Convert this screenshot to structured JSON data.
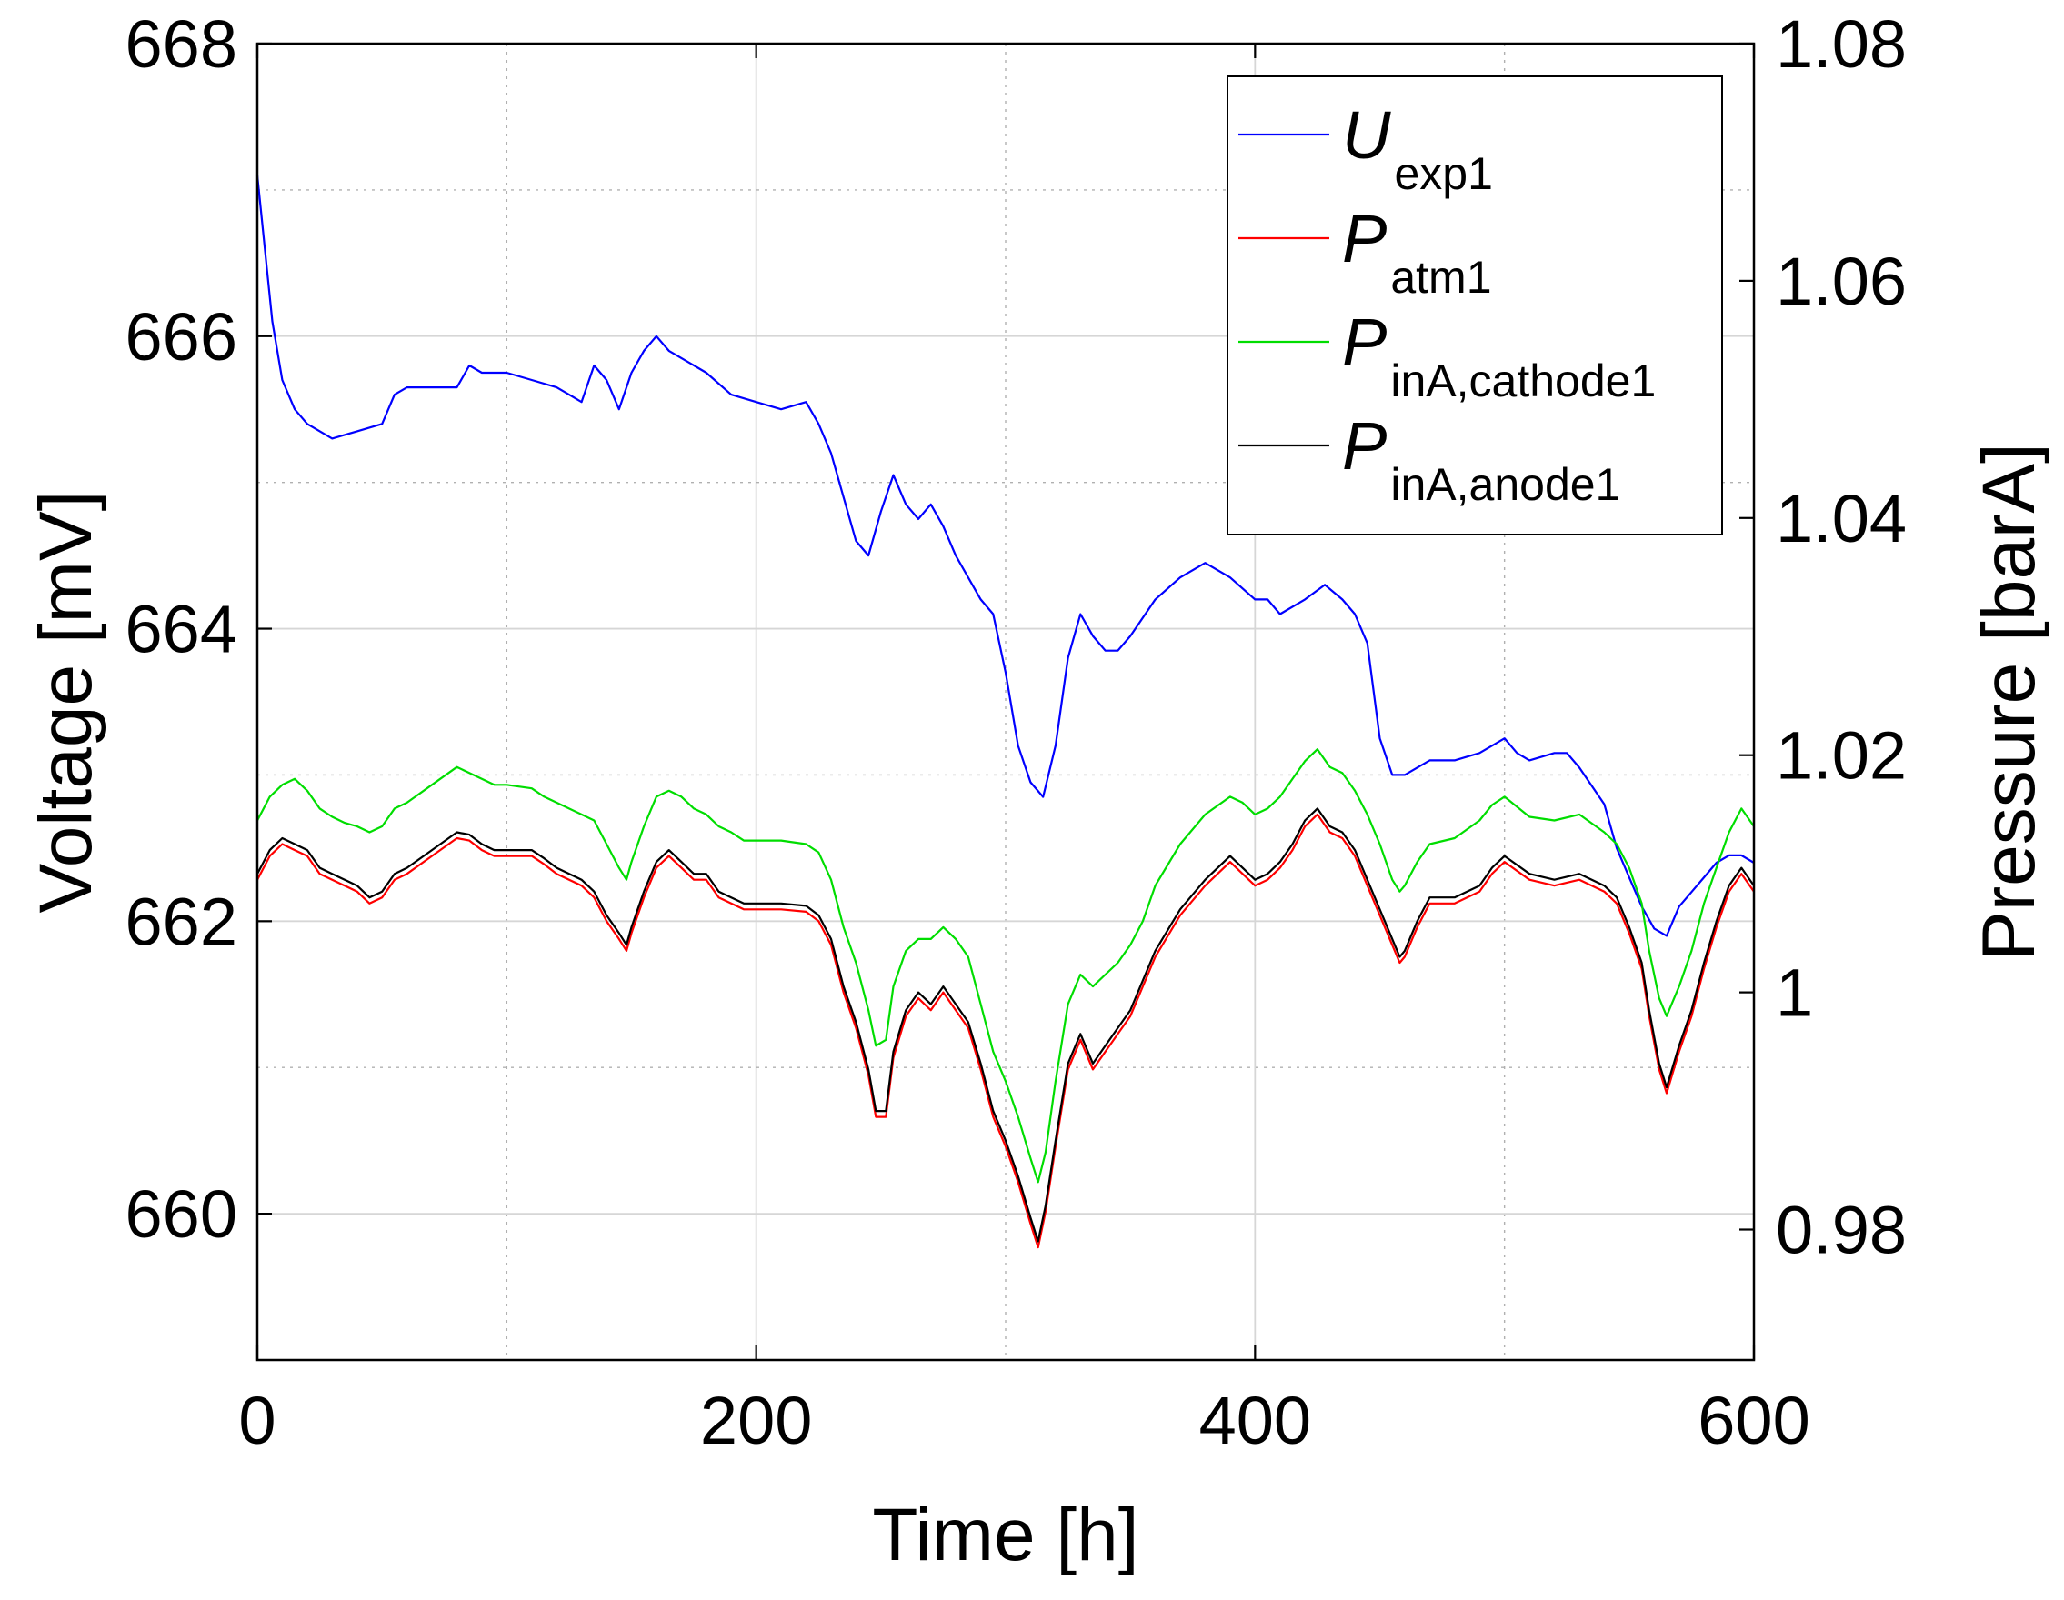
{
  "chart_data": {
    "type": "line",
    "xlabel": "Time [h]",
    "ylabel_left": "Voltage [mV]",
    "ylabel_right": "Pressure [barA]",
    "xlim": [
      0,
      600
    ],
    "ylim_left": [
      659,
      668
    ],
    "ylim_right": [
      0.969,
      1.08
    ],
    "x_ticks": [
      {
        "value": 0,
        "label": "0"
      },
      {
        "value": 200,
        "label": "200"
      },
      {
        "value": 400,
        "label": "400"
      },
      {
        "value": 600,
        "label": "600"
      }
    ],
    "y_left_ticks": [
      {
        "value": 660,
        "label": "660"
      },
      {
        "value": 662,
        "label": "662"
      },
      {
        "value": 664,
        "label": "664"
      },
      {
        "value": 666,
        "label": "666"
      },
      {
        "value": 668,
        "label": "668"
      }
    ],
    "y_right_ticks": [
      {
        "value": 0.98,
        "label": "0.98"
      },
      {
        "value": 1.0,
        "label": "1"
      },
      {
        "value": 1.02,
        "label": "1.02"
      },
      {
        "value": 1.04,
        "label": "1.04"
      },
      {
        "value": 1.06,
        "label": "1.06"
      },
      {
        "value": 1.08,
        "label": "1.08"
      }
    ],
    "grid": true,
    "legend_position": "top-right",
    "series": [
      {
        "name": "U",
        "subscript": "exp1",
        "color": "#0000ff",
        "axis": "left",
        "x": [
          0,
          3,
          6,
          10,
          15,
          20,
          30,
          40,
          50,
          55,
          60,
          70,
          80,
          85,
          90,
          100,
          110,
          120,
          125,
          130,
          135,
          140,
          145,
          150,
          155,
          160,
          165,
          170,
          180,
          190,
          200,
          210,
          220,
          225,
          230,
          235,
          240,
          245,
          250,
          255,
          260,
          265,
          270,
          275,
          280,
          290,
          295,
          300,
          305,
          310,
          315,
          320,
          325,
          330,
          335,
          340,
          345,
          350,
          360,
          370,
          380,
          390,
          400,
          405,
          410,
          420,
          428,
          435,
          440,
          445,
          450,
          455,
          460,
          470,
          480,
          490,
          495,
          500,
          505,
          510,
          520,
          525,
          530,
          540,
          545,
          550,
          555,
          560,
          565,
          570,
          575,
          580,
          585,
          590,
          595,
          600
        ],
        "y": [
          667.1,
          666.6,
          666.1,
          665.7,
          665.5,
          665.4,
          665.3,
          665.35,
          665.4,
          665.6,
          665.65,
          665.65,
          665.65,
          665.8,
          665.75,
          665.75,
          665.7,
          665.65,
          665.6,
          665.55,
          665.8,
          665.7,
          665.5,
          665.75,
          665.9,
          666.0,
          665.9,
          665.85,
          665.75,
          665.6,
          665.55,
          665.5,
          665.55,
          665.4,
          665.2,
          664.9,
          664.6,
          664.5,
          664.8,
          665.05,
          664.85,
          664.75,
          664.85,
          664.7,
          664.5,
          664.2,
          664.1,
          663.7,
          663.2,
          662.95,
          662.85,
          663.2,
          663.8,
          664.1,
          663.95,
          663.85,
          663.85,
          663.95,
          664.2,
          664.35,
          664.45,
          664.35,
          664.2,
          664.2,
          664.1,
          664.2,
          664.3,
          664.2,
          664.1,
          663.9,
          663.25,
          663.0,
          663.0,
          663.1,
          663.1,
          663.15,
          663.2,
          663.25,
          663.15,
          663.1,
          663.15,
          663.15,
          663.05,
          662.8,
          662.5,
          662.3,
          662.1,
          661.95,
          661.9,
          662.1,
          662.2,
          662.3,
          662.4,
          662.45,
          662.45,
          662.4
        ]
      },
      {
        "name": "P",
        "subscript": "atm1",
        "color": "#ff0000",
        "axis": "right",
        "x": [
          0,
          5,
          10,
          15,
          20,
          25,
          30,
          35,
          40,
          45,
          50,
          55,
          60,
          70,
          80,
          85,
          90,
          95,
          100,
          110,
          115,
          120,
          130,
          135,
          140,
          145,
          148,
          150,
          155,
          160,
          165,
          170,
          175,
          180,
          185,
          190,
          195,
          200,
          210,
          220,
          225,
          230,
          235,
          240,
          245,
          248,
          252,
          255,
          260,
          265,
          270,
          275,
          280,
          285,
          290,
          295,
          300,
          305,
          310,
          313,
          316,
          320,
          325,
          330,
          335,
          340,
          345,
          350,
          355,
          360,
          370,
          380,
          390,
          395,
          400,
          405,
          410,
          415,
          420,
          425,
          430,
          435,
          440,
          445,
          450,
          455,
          458,
          460,
          465,
          470,
          480,
          490,
          495,
          500,
          510,
          520,
          530,
          540,
          545,
          550,
          555,
          558,
          562,
          565,
          570,
          575,
          580,
          585,
          590,
          595,
          600
        ],
        "y": [
          1.0095,
          1.0115,
          1.0125,
          1.012,
          1.0115,
          1.01,
          1.0095,
          1.009,
          1.0085,
          1.0075,
          1.008,
          1.0095,
          1.01,
          1.0115,
          1.013,
          1.0128,
          1.012,
          1.0115,
          1.0115,
          1.0115,
          1.0108,
          1.01,
          1.009,
          1.008,
          1.006,
          1.0045,
          1.0035,
          1.005,
          1.008,
          1.0105,
          1.0115,
          1.0105,
          1.0095,
          1.0095,
          1.008,
          1.0075,
          1.007,
          1.007,
          1.007,
          1.0068,
          1.006,
          1.004,
          1.0,
          0.997,
          0.993,
          0.9895,
          0.9895,
          0.9945,
          0.998,
          0.9995,
          0.9985,
          1.0,
          0.9985,
          0.997,
          0.9935,
          0.9895,
          0.987,
          0.984,
          0.9805,
          0.9785,
          0.9815,
          0.987,
          0.9935,
          0.996,
          0.9935,
          0.995,
          0.9965,
          0.998,
          1.0005,
          1.003,
          1.0065,
          1.009,
          1.011,
          1.01,
          1.009,
          1.0095,
          1.0105,
          1.012,
          1.014,
          1.015,
          1.0135,
          1.013,
          1.0115,
          1.009,
          1.0065,
          1.004,
          1.0025,
          1.003,
          1.0055,
          1.0075,
          1.0075,
          1.0085,
          1.01,
          1.011,
          1.0095,
          1.009,
          1.0095,
          1.0085,
          1.0075,
          1.005,
          1.002,
          0.998,
          0.9935,
          0.9915,
          0.995,
          0.998,
          1.002,
          1.0055,
          1.0085,
          1.01,
          1.0085
        ]
      },
      {
        "name": "P",
        "subscript": "inA,cathode1",
        "color": "#00dd00",
        "axis": "right",
        "x": [
          0,
          5,
          10,
          15,
          20,
          25,
          30,
          35,
          40,
          45,
          50,
          55,
          60,
          70,
          80,
          85,
          90,
          95,
          100,
          110,
          115,
          120,
          130,
          135,
          140,
          145,
          148,
          150,
          155,
          160,
          165,
          170,
          175,
          180,
          185,
          190,
          195,
          200,
          210,
          220,
          225,
          230,
          235,
          240,
          245,
          248,
          252,
          255,
          260,
          265,
          270,
          275,
          280,
          285,
          290,
          295,
          300,
          305,
          310,
          313,
          316,
          320,
          325,
          330,
          335,
          340,
          345,
          350,
          355,
          360,
          370,
          380,
          390,
          395,
          400,
          405,
          410,
          415,
          420,
          425,
          430,
          435,
          440,
          445,
          450,
          455,
          458,
          460,
          465,
          470,
          480,
          490,
          495,
          500,
          510,
          520,
          530,
          540,
          545,
          550,
          555,
          558,
          562,
          565,
          570,
          575,
          580,
          585,
          590,
          595,
          600
        ],
        "y": [
          1.0145,
          1.0165,
          1.0175,
          1.018,
          1.017,
          1.0155,
          1.0148,
          1.0143,
          1.014,
          1.0135,
          1.014,
          1.0155,
          1.016,
          1.0175,
          1.019,
          1.0185,
          1.018,
          1.0175,
          1.0175,
          1.0172,
          1.0165,
          1.016,
          1.015,
          1.0145,
          1.0125,
          1.0105,
          1.0095,
          1.011,
          1.014,
          1.0165,
          1.017,
          1.0165,
          1.0155,
          1.015,
          1.014,
          1.0135,
          1.0128,
          1.0128,
          1.0128,
          1.0125,
          1.0118,
          1.0095,
          1.0055,
          1.0025,
          0.9985,
          0.9955,
          0.996,
          1.0005,
          1.0035,
          1.0045,
          1.0045,
          1.0055,
          1.0045,
          1.003,
          0.999,
          0.995,
          0.9925,
          0.9895,
          0.986,
          0.984,
          0.9865,
          0.9925,
          0.999,
          1.0015,
          1.0005,
          1.0015,
          1.0025,
          1.004,
          1.006,
          1.009,
          1.0125,
          1.015,
          1.0165,
          1.016,
          1.015,
          1.0155,
          1.0165,
          1.018,
          1.0195,
          1.0205,
          1.019,
          1.0185,
          1.017,
          1.015,
          1.0125,
          1.0095,
          1.0085,
          1.009,
          1.011,
          1.0125,
          1.013,
          1.0145,
          1.0158,
          1.0165,
          1.0148,
          1.0145,
          1.015,
          1.0135,
          1.0125,
          1.0105,
          1.0075,
          1.0035,
          0.9995,
          0.998,
          1.0005,
          1.0035,
          1.0075,
          1.0105,
          1.0135,
          1.0155,
          1.014
        ]
      },
      {
        "name": "P",
        "subscript": "inA,anode1",
        "color": "#000000",
        "axis": "right",
        "x": [
          0,
          5,
          10,
          15,
          20,
          25,
          30,
          35,
          40,
          45,
          50,
          55,
          60,
          70,
          80,
          85,
          90,
          95,
          100,
          110,
          115,
          120,
          130,
          135,
          140,
          145,
          148,
          150,
          155,
          160,
          165,
          170,
          175,
          180,
          185,
          190,
          195,
          200,
          210,
          220,
          225,
          230,
          235,
          240,
          245,
          248,
          252,
          255,
          260,
          265,
          270,
          275,
          280,
          285,
          290,
          295,
          300,
          305,
          310,
          313,
          316,
          320,
          325,
          330,
          335,
          340,
          345,
          350,
          355,
          360,
          370,
          380,
          390,
          395,
          400,
          405,
          410,
          415,
          420,
          425,
          430,
          435,
          440,
          445,
          450,
          455,
          458,
          460,
          465,
          470,
          480,
          490,
          495,
          500,
          510,
          520,
          530,
          540,
          545,
          550,
          555,
          558,
          562,
          565,
          570,
          575,
          580,
          585,
          590,
          595,
          600
        ],
        "y": [
          1.01,
          1.012,
          1.013,
          1.0125,
          1.012,
          1.0105,
          1.01,
          1.0095,
          1.009,
          1.008,
          1.0085,
          1.01,
          1.0105,
          1.012,
          1.0135,
          1.0133,
          1.0125,
          1.012,
          1.012,
          1.012,
          1.0113,
          1.0105,
          1.0095,
          1.0085,
          1.0065,
          1.005,
          1.004,
          1.0055,
          1.0085,
          1.011,
          1.012,
          1.011,
          1.01,
          1.01,
          1.0085,
          1.008,
          1.0075,
          1.0075,
          1.0075,
          1.0073,
          1.0065,
          1.0045,
          1.0005,
          0.9975,
          0.9935,
          0.99,
          0.99,
          0.995,
          0.9985,
          1.0,
          0.999,
          1.0005,
          0.999,
          0.9975,
          0.994,
          0.99,
          0.9875,
          0.9845,
          0.981,
          0.979,
          0.982,
          0.9875,
          0.994,
          0.9965,
          0.994,
          0.9955,
          0.997,
          0.9985,
          1.001,
          1.0035,
          1.007,
          1.0095,
          1.0115,
          1.0105,
          1.0095,
          1.01,
          1.011,
          1.0125,
          1.0145,
          1.0155,
          1.014,
          1.0135,
          1.012,
          1.0095,
          1.007,
          1.0045,
          1.003,
          1.0035,
          1.006,
          1.008,
          1.008,
          1.009,
          1.0105,
          1.0115,
          1.01,
          1.0095,
          1.01,
          1.009,
          1.008,
          1.0055,
          1.0025,
          0.9985,
          0.994,
          0.992,
          0.9955,
          0.9985,
          1.0025,
          1.006,
          1.009,
          1.0105,
          1.009
        ]
      }
    ]
  }
}
